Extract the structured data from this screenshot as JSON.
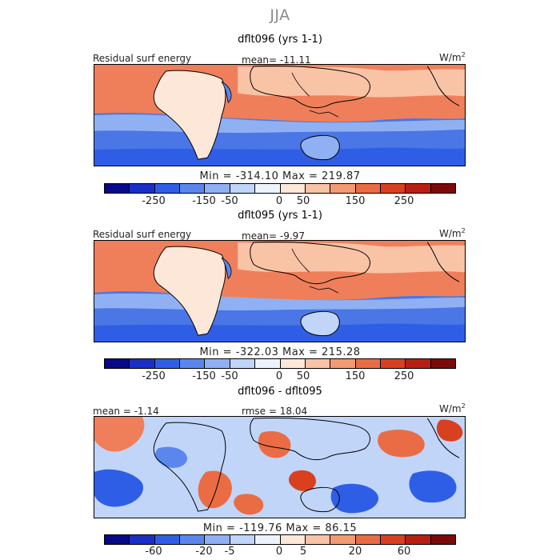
{
  "season_title": "JJA",
  "palette": [
    "#08088a",
    "#1a2fc8",
    "#2f5ee6",
    "#5a86ee",
    "#8fb1f3",
    "#c0d5f8",
    "#ecf3fd",
    "#fde7d9",
    "#f9c3a6",
    "#f39a72",
    "#ea6c45",
    "#d9401f",
    "#b81e12",
    "#7d0a0a"
  ],
  "panels": [
    {
      "title": "dflt096 (yrs 1-1)",
      "left_label": "Residual surf energy",
      "stat_label": "mean= -11.11",
      "units": "W/m",
      "units_sup": "2",
      "minmax": "Min = -314.10 Max = 219.87",
      "ticks": [
        "-250",
        "-150",
        "-50",
        "0",
        "50",
        "150",
        "250"
      ]
    },
    {
      "title": "dflt095 (yrs 1-1)",
      "left_label": "Residual surf energy",
      "stat_label": "mean= -9.97",
      "units": "W/m",
      "units_sup": "2",
      "minmax": "Min = -322.03 Max = 215.28",
      "ticks": [
        "-250",
        "-150",
        "-50",
        "0",
        "50",
        "150",
        "250"
      ]
    },
    {
      "title": "dflt096 - dflt095",
      "left_label": "mean = -1.14",
      "stat_label": "rmse = 18.04",
      "units": "W/m",
      "units_sup": "2",
      "minmax": "Min = -119.76 Max = 86.15",
      "ticks": [
        "-60",
        "-20",
        "-5",
        "0",
        "5",
        "20",
        "60"
      ]
    }
  ]
}
